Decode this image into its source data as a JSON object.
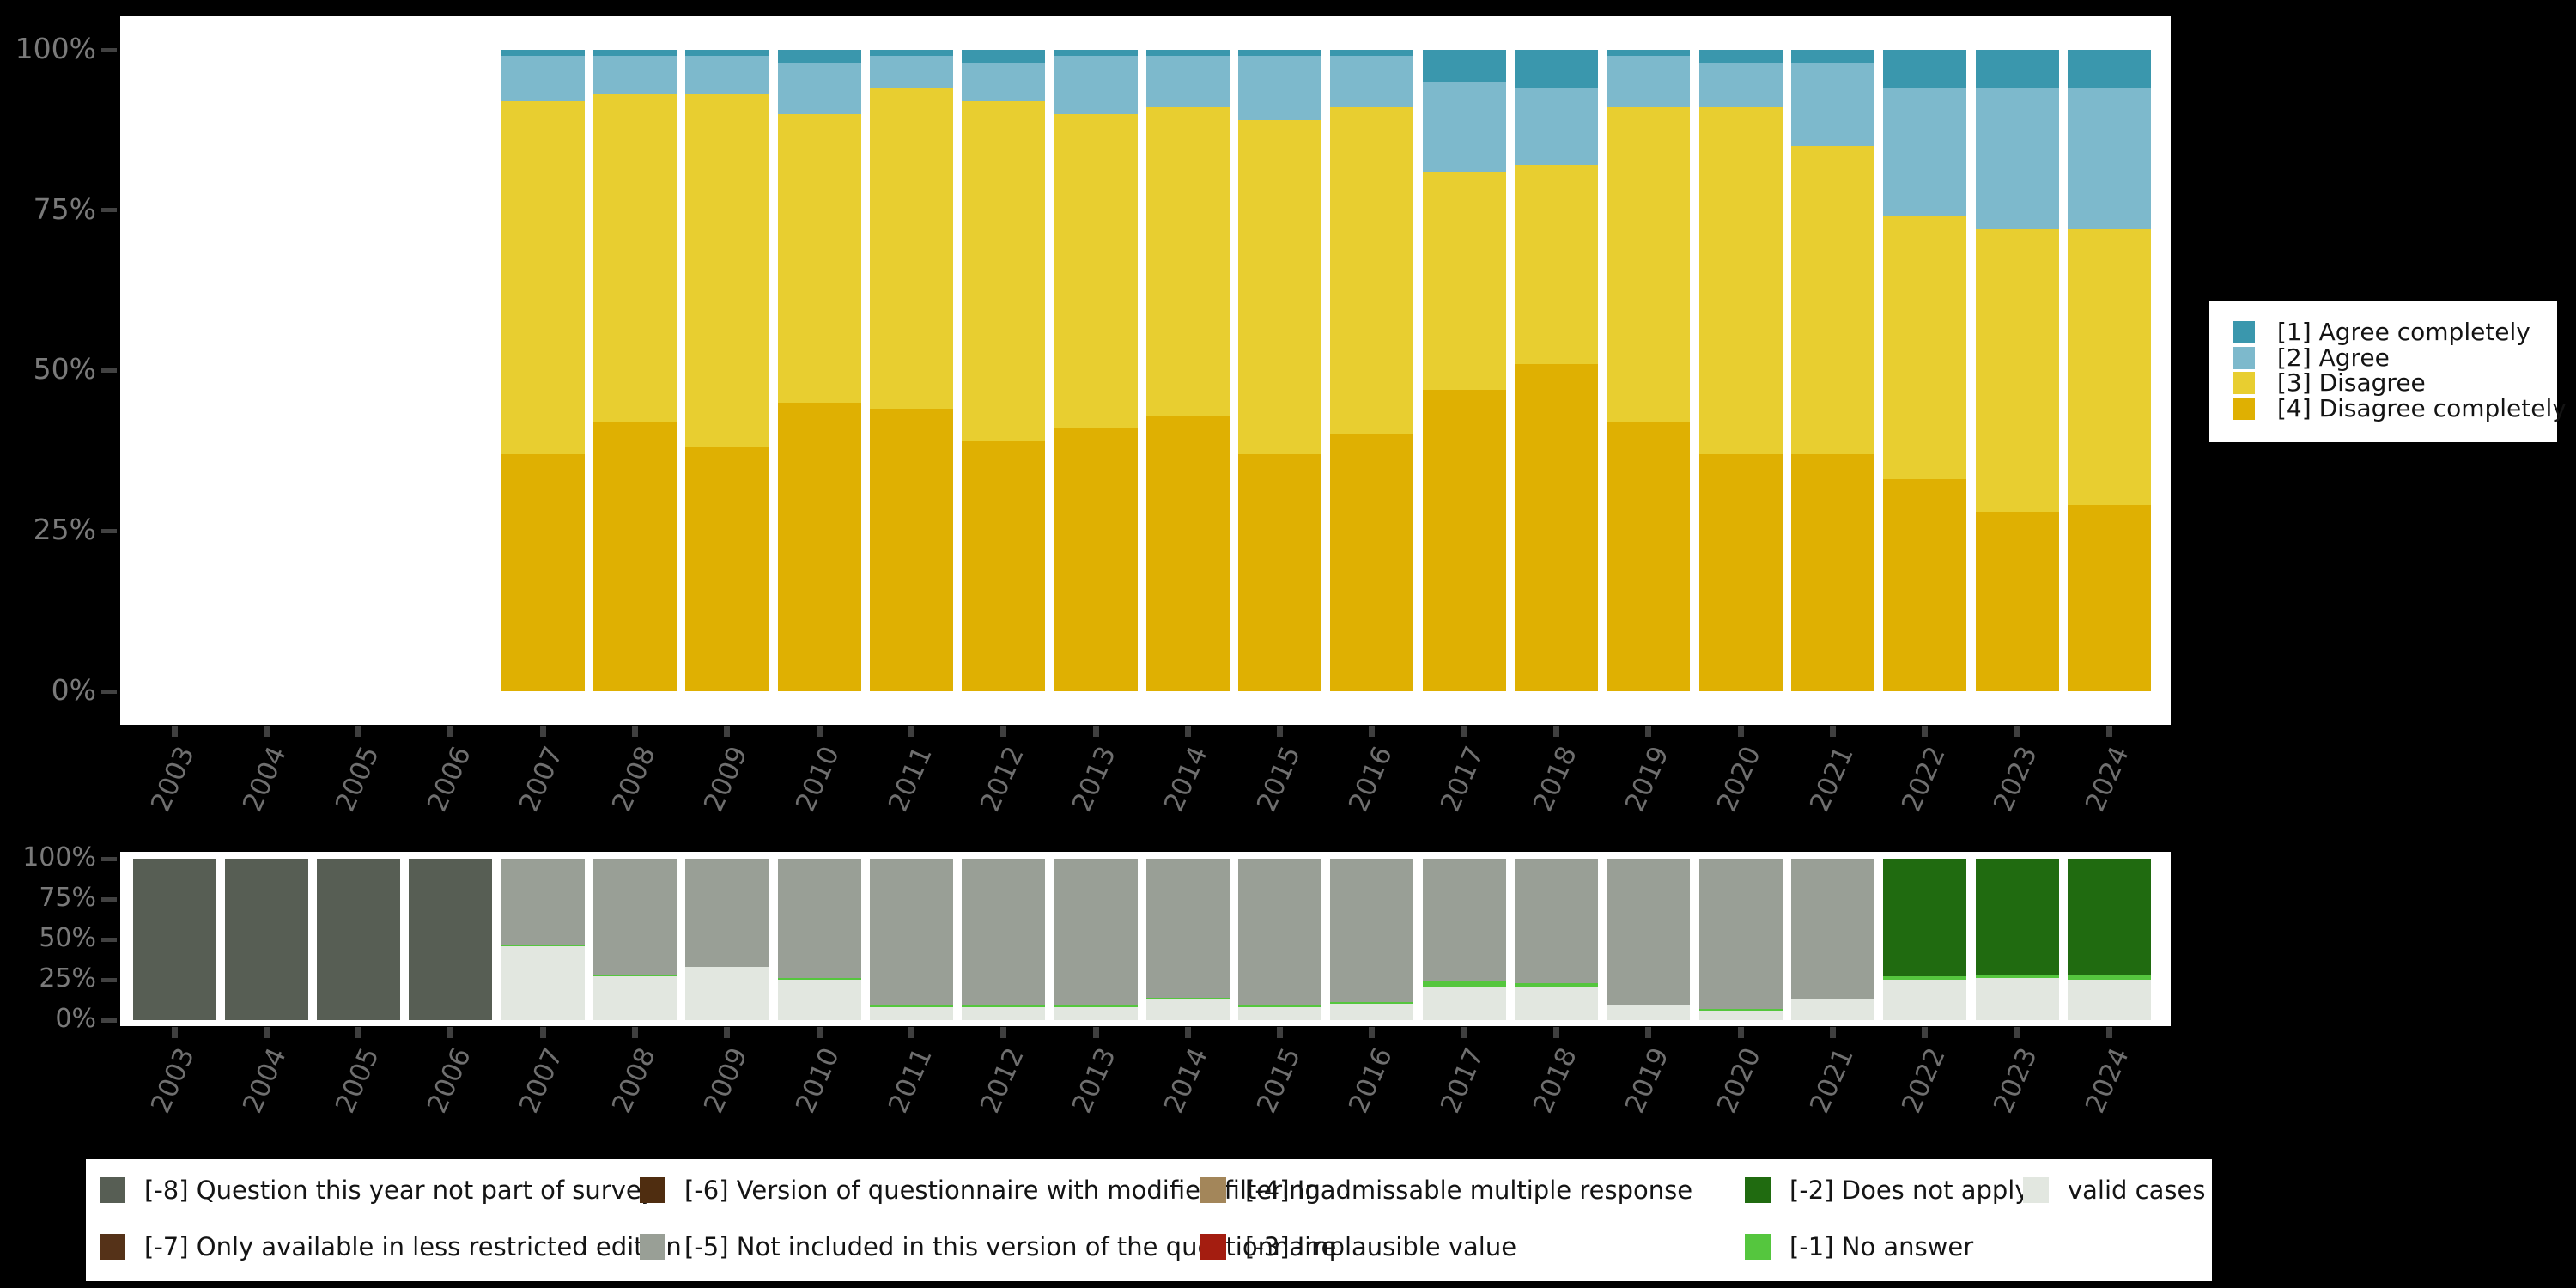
{
  "page": {
    "background": "#000000",
    "panel_color": "#ffffff"
  },
  "palette": {
    "agree_completely": "#3a97ad",
    "agree": "#7db9cc",
    "disagree": "#e8ce30",
    "disagree_completely": "#dfb002",
    "m8_not_part_of_survey": "#575e54",
    "m7_less_restricted": "#553218",
    "m6_modified_filtering": "#4f2d10",
    "m5_not_included": "#999f96",
    "m4_inadmissable": "#a3865a",
    "m3_implausible": "#a41d10",
    "m2_does_not_apply": "#206b10",
    "m1_no_answer": "#55c63e",
    "valid_cases": "#e2e7e0",
    "axis_tick": "#424242",
    "axis_label": "#7a7a7a",
    "year_label": "#6f6f6f"
  },
  "axis": {
    "ytick_labels": [
      "0%",
      "25%",
      "50%",
      "75%",
      "100%"
    ],
    "years": [
      "2003",
      "2004",
      "2005",
      "2006",
      "2007",
      "2008",
      "2009",
      "2010",
      "2011",
      "2012",
      "2013",
      "2014",
      "2015",
      "2016",
      "2017",
      "2018",
      "2019",
      "2020",
      "2021",
      "2022",
      "2023",
      "2024"
    ]
  },
  "chart_data": [
    {
      "id": "responses",
      "type": "bar",
      "stacked": true,
      "title": "",
      "xlabel": "",
      "ylabel": "",
      "ylim": [
        0,
        100
      ],
      "grid": false,
      "legend_position": "right",
      "categories": [
        "2003",
        "2004",
        "2005",
        "2006",
        "2007",
        "2008",
        "2009",
        "2010",
        "2011",
        "2012",
        "2013",
        "2014",
        "2015",
        "2016",
        "2017",
        "2018",
        "2019",
        "2020",
        "2021",
        "2022",
        "2023",
        "2024"
      ],
      "stack_order": "bottom_to_top",
      "series": [
        {
          "name": "[4] Disagree completely",
          "color": "#dfb002",
          "values": [
            null,
            null,
            null,
            null,
            37,
            42,
            38,
            45,
            44,
            39,
            41,
            43,
            37,
            40,
            47,
            51,
            42,
            37,
            37,
            33,
            28,
            29
          ]
        },
        {
          "name": "[3] Disagree",
          "color": "#e8ce30",
          "values": [
            null,
            null,
            null,
            null,
            55,
            51,
            55,
            45,
            50,
            53,
            49,
            48,
            52,
            51,
            34,
            31,
            49,
            54,
            48,
            41,
            44,
            43
          ]
        },
        {
          "name": "[2] Agree",
          "color": "#7db9cc",
          "values": [
            null,
            null,
            null,
            null,
            7,
            6,
            6,
            8,
            5,
            6,
            9,
            8,
            10,
            8,
            14,
            12,
            8,
            7,
            13,
            20,
            22,
            22
          ]
        },
        {
          "name": "[1] Agree completely",
          "color": "#3a97ad",
          "values": [
            null,
            null,
            null,
            null,
            1,
            1,
            1,
            2,
            1,
            2,
            1,
            1,
            1,
            1,
            5,
            6,
            1,
            2,
            2,
            6,
            6,
            6
          ]
        }
      ]
    },
    {
      "id": "missing-values",
      "type": "bar",
      "stacked": true,
      "title": "",
      "xlabel": "",
      "ylabel": "",
      "ylim": [
        0,
        100
      ],
      "grid": false,
      "legend_position": "bottom",
      "categories": [
        "2003",
        "2004",
        "2005",
        "2006",
        "2007",
        "2008",
        "2009",
        "2010",
        "2011",
        "2012",
        "2013",
        "2014",
        "2015",
        "2016",
        "2017",
        "2018",
        "2019",
        "2020",
        "2021",
        "2022",
        "2023",
        "2024"
      ],
      "stack_order": "bottom_to_top",
      "series": [
        {
          "name": "valid cases",
          "color": "#e2e7e0",
          "values": [
            0,
            0,
            0,
            0,
            46,
            27,
            33,
            25,
            8,
            8,
            8,
            13,
            8,
            10,
            21,
            21,
            9,
            6,
            13,
            25,
            26,
            25
          ]
        },
        {
          "name": "[-1] No answer",
          "color": "#55c63e",
          "values": [
            0,
            0,
            0,
            0,
            1,
            1,
            0,
            1,
            1,
            1,
            1,
            1,
            1,
            1,
            3,
            2,
            0,
            1,
            0,
            2,
            2,
            3
          ]
        },
        {
          "name": "[-5] Not included in this version of the questionnaire",
          "color": "#999f96",
          "values": [
            0,
            0,
            0,
            0,
            53,
            72,
            67,
            74,
            91,
            91,
            91,
            86,
            91,
            89,
            76,
            77,
            91,
            93,
            87,
            0,
            0,
            0
          ]
        },
        {
          "name": "[-2] Does not apply",
          "color": "#206b10",
          "values": [
            0,
            0,
            0,
            0,
            0,
            0,
            0,
            0,
            0,
            0,
            0,
            0,
            0,
            0,
            0,
            0,
            0,
            0,
            0,
            73,
            72,
            72
          ]
        },
        {
          "name": "[-8] Question this year not part of survey",
          "color": "#575e54",
          "values": [
            100,
            100,
            100,
            100,
            0,
            0,
            0,
            0,
            0,
            0,
            0,
            0,
            0,
            0,
            0,
            0,
            0,
            0,
            0,
            0,
            0,
            0
          ]
        }
      ]
    }
  ],
  "top_legend": {
    "items": [
      {
        "label": "[1] Agree completely",
        "color": "#3a97ad"
      },
      {
        "label": "[2] Agree",
        "color": "#7db9cc"
      },
      {
        "label": "[3] Disagree",
        "color": "#e8ce30"
      },
      {
        "label": "[4] Disagree completely",
        "color": "#dfb002"
      }
    ]
  },
  "bottom_legend": {
    "columns": [
      [
        {
          "label": "[-8] Question this year not part of survey",
          "color": "#575e54"
        },
        {
          "label": "[-7] Only available in less restricted edition",
          "color": "#553218"
        }
      ],
      [
        {
          "label": "[-6] Version of questionnaire with modified filtering",
          "color": "#4f2d10"
        },
        {
          "label": "[-5] Not included in this version of the questionnaire",
          "color": "#999f96"
        }
      ],
      [
        {
          "label": "[-4] Inadmissable multiple response",
          "color": "#a3865a"
        },
        {
          "label": "[-3] Implausible value",
          "color": "#a41d10"
        }
      ],
      [
        {
          "label": "[-2] Does not apply",
          "color": "#206b10"
        },
        {
          "label": "[-1] No answer",
          "color": "#55c63e"
        }
      ],
      [
        {
          "label": "valid cases",
          "color": "#e2e7e0"
        }
      ]
    ]
  }
}
